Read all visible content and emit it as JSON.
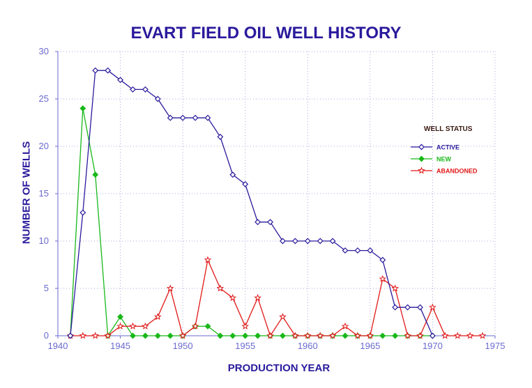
{
  "chart_data": {
    "type": "line",
    "title": "EVART FIELD OIL WELL HISTORY",
    "xlabel": "PRODUCTION YEAR",
    "ylabel": "NUMBER OF WELLS",
    "xlim": [
      1940,
      1975
    ],
    "ylim": [
      0,
      30
    ],
    "x_ticks": [
      "1940",
      "1945",
      "1950",
      "1955",
      "1960",
      "1965",
      "1970",
      "1975"
    ],
    "y_ticks": [
      "0",
      "5",
      "10",
      "15",
      "20",
      "25",
      "30"
    ],
    "grid": true,
    "legend_title": "WELL STATUS",
    "legend_position": "right",
    "series": [
      {
        "name": "ACTIVE",
        "color": "#2a1a9c",
        "marker": "diamond-open",
        "x": [
          1941,
          1942,
          1943,
          1944,
          1945,
          1946,
          1947,
          1948,
          1949,
          1950,
          1951,
          1952,
          1953,
          1954,
          1955,
          1956,
          1957,
          1958,
          1959,
          1960,
          1961,
          1962,
          1963,
          1964,
          1965,
          1966,
          1967,
          1968,
          1969,
          1970
        ],
        "values": [
          0,
          13,
          28,
          28,
          27,
          26,
          26,
          25,
          23,
          23,
          23,
          23,
          21,
          17,
          16,
          12,
          12,
          10,
          10,
          10,
          10,
          10,
          9,
          9,
          9,
          8,
          3,
          3,
          3,
          0
        ]
      },
      {
        "name": "NEW",
        "color": "#18b818",
        "marker": "diamond-filled",
        "x": [
          1941,
          1942,
          1943,
          1944,
          1945,
          1946,
          1947,
          1948,
          1949,
          1950,
          1951,
          1952,
          1953,
          1954,
          1955,
          1956,
          1957,
          1958,
          1959,
          1960,
          1961,
          1962,
          1963,
          1964,
          1965,
          1966,
          1967,
          1968,
          1969,
          1970
        ],
        "values": [
          0,
          24,
          17,
          0,
          2,
          0,
          0,
          0,
          0,
          0,
          1,
          1,
          0,
          0,
          0,
          0,
          0,
          0,
          0,
          0,
          0,
          0,
          0,
          0,
          0,
          0,
          0,
          0,
          0,
          0
        ]
      },
      {
        "name": "ABANDONED",
        "color": "#e01818",
        "marker": "star-open",
        "x": [
          1941,
          1942,
          1943,
          1944,
          1945,
          1946,
          1947,
          1948,
          1949,
          1950,
          1951,
          1952,
          1953,
          1954,
          1955,
          1956,
          1957,
          1958,
          1959,
          1960,
          1961,
          1962,
          1963,
          1964,
          1965,
          1966,
          1967,
          1968,
          1969,
          1970,
          1971,
          1972,
          1973,
          1974
        ],
        "values": [
          0,
          0,
          0,
          0,
          1,
          1,
          1,
          2,
          5,
          0,
          1,
          8,
          5,
          4,
          1,
          4,
          0,
          2,
          0,
          0,
          0,
          0,
          1,
          0,
          0,
          6,
          5,
          0,
          0,
          3,
          0,
          0,
          0,
          0
        ]
      }
    ]
  }
}
